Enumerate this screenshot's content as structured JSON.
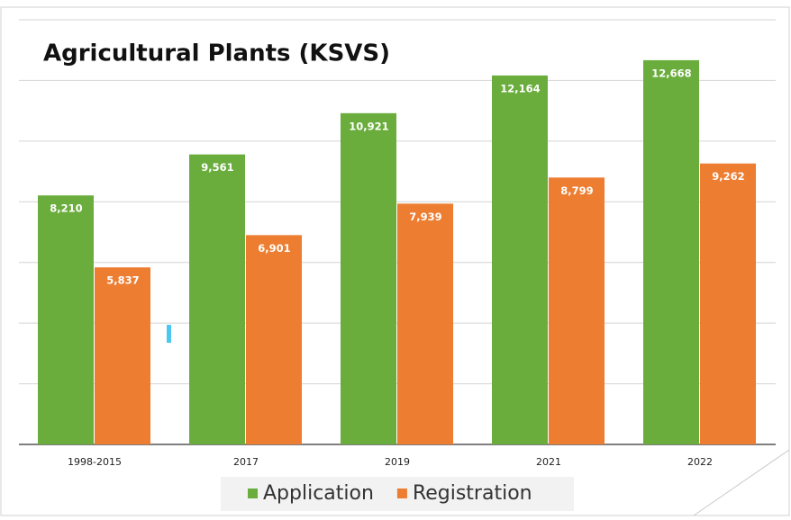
{
  "chart_data": {
    "type": "bar",
    "title": "Agricultural Plants (KSVS)",
    "categories": [
      "1998-2015",
      "2017",
      "2019",
      "2021",
      "2022"
    ],
    "series": [
      {
        "name": "Application",
        "color": "#6aad3d",
        "values": [
          8210,
          9561,
          10921,
          12164,
          12668
        ],
        "value_labels": [
          "8,210",
          "9,561",
          "10,921",
          "12,164",
          "12,668"
        ]
      },
      {
        "name": "Registration",
        "color": "#ed7d31",
        "values": [
          5837,
          6901,
          7939,
          8799,
          9262
        ],
        "value_labels": [
          "5,837",
          "6,901",
          "7,939",
          "8,799",
          "9,262"
        ]
      }
    ],
    "ylim": [
      0,
      14000
    ],
    "yticks": [
      0,
      2000,
      4000,
      6000,
      8000,
      10000,
      12000,
      14000
    ],
    "grid": true
  }
}
